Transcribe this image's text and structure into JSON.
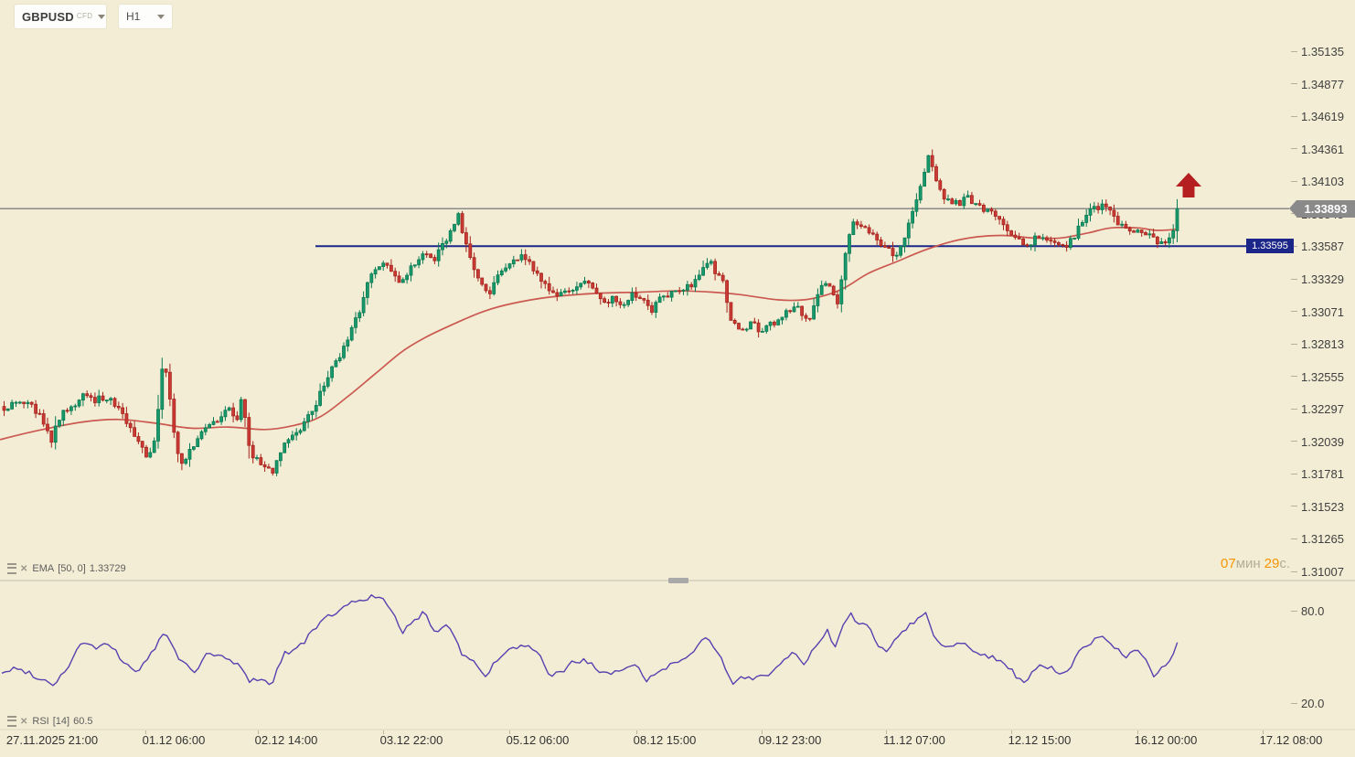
{
  "toolbar": {
    "symbol": "GBPUSD",
    "symbol_type": "CFD",
    "timeframe": "H1"
  },
  "indicator_labels": {
    "ema": {
      "name": "EMA",
      "params": "[50, 0]",
      "value": "1.33729"
    },
    "rsi": {
      "name": "RSI",
      "params": "[14]",
      "value": "60.5"
    }
  },
  "countdown": {
    "minutes": "07",
    "minutes_unit": "мин",
    "seconds": "29",
    "seconds_unit": "с."
  },
  "chart_data": {
    "type": "candlestick",
    "title": "GBPUSD CFD, H1",
    "legend_position": "none",
    "grid": false,
    "price_axis": {
      "min": 1.31007,
      "max": 1.35135,
      "tick_step": 0.00258,
      "ticks": [
        "1.35135",
        "1.34877",
        "1.34619",
        "1.34361",
        "1.34103",
        "1.33845",
        "1.33587",
        "1.33329",
        "1.33071",
        "1.32813",
        "1.32555",
        "1.32297",
        "1.32039",
        "1.31781",
        "1.31523",
        "1.31265",
        "1.31007"
      ]
    },
    "time_axis": {
      "labels": [
        "27.11.2025 21:00",
        "01.12 06:00",
        "02.12 14:00",
        "03.12 22:00",
        "05.12 06:00",
        "08.12 15:00",
        "09.12 23:00",
        "11.12 07:00",
        "12.12 15:00",
        "16.12 00:00",
        "17.12 08:00"
      ]
    },
    "rsi_axis": {
      "ticks": [
        "80.0",
        "20.0"
      ],
      "min": 0,
      "max": 100
    },
    "hlines": [
      {
        "label": "1.33893",
        "price": 1.33893,
        "style": "current-price",
        "color": "#8a8a8a"
      },
      {
        "label": "1.33595",
        "price": 1.33595,
        "style": "level",
        "color": "#1b2688"
      }
    ],
    "annotation": {
      "type": "arrow-up",
      "color": "#b51f1f"
    },
    "price_series": {
      "name": "GBPUSD H1 close (keypoints [x_px, price])",
      "keypoints": [
        [
          2,
          1.3231
        ],
        [
          18,
          1.3236
        ],
        [
          32,
          1.3233
        ],
        [
          45,
          1.3222
        ],
        [
          55,
          1.3204
        ],
        [
          62,
          1.3222
        ],
        [
          70,
          1.323
        ],
        [
          80,
          1.3233
        ],
        [
          90,
          1.3242
        ],
        [
          100,
          1.3236
        ],
        [
          112,
          1.324
        ],
        [
          122,
          1.3235
        ],
        [
          132,
          1.3228
        ],
        [
          142,
          1.3212
        ],
        [
          152,
          1.32
        ],
        [
          160,
          1.3192
        ],
        [
          168,
          1.3205
        ],
        [
          176,
          1.3264
        ],
        [
          182,
          1.3257
        ],
        [
          188,
          1.3212
        ],
        [
          196,
          1.3185
        ],
        [
          205,
          1.3196
        ],
        [
          214,
          1.3205
        ],
        [
          222,
          1.3215
        ],
        [
          232,
          1.3218
        ],
        [
          242,
          1.3228
        ],
        [
          250,
          1.323
        ],
        [
          257,
          1.3218
        ],
        [
          263,
          1.3242
        ],
        [
          272,
          1.3196
        ],
        [
          280,
          1.319
        ],
        [
          290,
          1.3182
        ],
        [
          297,
          1.318
        ],
        [
          305,
          1.3195
        ],
        [
          315,
          1.3208
        ],
        [
          325,
          1.3212
        ],
        [
          333,
          1.3222
        ],
        [
          342,
          1.323
        ],
        [
          352,
          1.3248
        ],
        [
          362,
          1.3262
        ],
        [
          372,
          1.3275
        ],
        [
          382,
          1.3291
        ],
        [
          392,
          1.3308
        ],
        [
          400,
          1.333
        ],
        [
          410,
          1.3342
        ],
        [
          418,
          1.3345
        ],
        [
          428,
          1.3338
        ],
        [
          436,
          1.333
        ],
        [
          445,
          1.3338
        ],
        [
          455,
          1.335
        ],
        [
          465,
          1.3355
        ],
        [
          472,
          1.3345
        ],
        [
          480,
          1.336
        ],
        [
          490,
          1.3368
        ],
        [
          500,
          1.3385
        ],
        [
          508,
          1.336
        ],
        [
          516,
          1.3345
        ],
        [
          524,
          1.3332
        ],
        [
          532,
          1.332
        ],
        [
          540,
          1.3332
        ],
        [
          550,
          1.334
        ],
        [
          560,
          1.3348
        ],
        [
          570,
          1.3352
        ],
        [
          578,
          1.3345
        ],
        [
          588,
          1.3335
        ],
        [
          598,
          1.3328
        ],
        [
          606,
          1.3318
        ],
        [
          615,
          1.3325
        ],
        [
          624,
          1.3322
        ],
        [
          632,
          1.333
        ],
        [
          642,
          1.3333
        ],
        [
          652,
          1.3322
        ],
        [
          662,
          1.3316
        ],
        [
          672,
          1.3318
        ],
        [
          680,
          1.3311
        ],
        [
          690,
          1.3322
        ],
        [
          700,
          1.332
        ],
        [
          710,
          1.3308
        ],
        [
          720,
          1.3318
        ],
        [
          730,
          1.3322
        ],
        [
          740,
          1.3322
        ],
        [
          750,
          1.3328
        ],
        [
          758,
          1.333
        ],
        [
          766,
          1.334
        ],
        [
          774,
          1.3348
        ],
        [
          782,
          1.3338
        ],
        [
          790,
          1.333
        ],
        [
          798,
          1.33
        ],
        [
          806,
          1.3295
        ],
        [
          814,
          1.3294
        ],
        [
          822,
          1.33
        ],
        [
          830,
          1.3292
        ],
        [
          840,
          1.3298
        ],
        [
          850,
          1.33
        ],
        [
          858,
          1.3306
        ],
        [
          868,
          1.3312
        ],
        [
          876,
          1.3306
        ],
        [
          884,
          1.3303
        ],
        [
          892,
          1.332
        ],
        [
          900,
          1.333
        ],
        [
          908,
          1.3326
        ],
        [
          914,
          1.3312
        ],
        [
          922,
          1.335
        ],
        [
          930,
          1.338
        ],
        [
          938,
          1.3377
        ],
        [
          946,
          1.3375
        ],
        [
          954,
          1.3366
        ],
        [
          962,
          1.3358
        ],
        [
          970,
          1.3357
        ],
        [
          978,
          1.335
        ],
        [
          986,
          1.3364
        ],
        [
          994,
          1.338
        ],
        [
          1002,
          1.34
        ],
        [
          1008,
          1.3415
        ],
        [
          1014,
          1.3433
        ],
        [
          1020,
          1.342
        ],
        [
          1026,
          1.3405
        ],
        [
          1032,
          1.3398
        ],
        [
          1040,
          1.3394
        ],
        [
          1048,
          1.3394
        ],
        [
          1056,
          1.3398
        ],
        [
          1064,
          1.3393
        ],
        [
          1072,
          1.339
        ],
        [
          1080,
          1.3388
        ],
        [
          1088,
          1.3382
        ],
        [
          1096,
          1.3376
        ],
        [
          1104,
          1.3371
        ],
        [
          1112,
          1.3366
        ],
        [
          1118,
          1.3358
        ],
        [
          1126,
          1.3362
        ],
        [
          1134,
          1.3368
        ],
        [
          1142,
          1.3365
        ],
        [
          1150,
          1.3362
        ],
        [
          1158,
          1.336
        ],
        [
          1166,
          1.3361
        ],
        [
          1174,
          1.3367
        ],
        [
          1182,
          1.338
        ],
        [
          1190,
          1.3387
        ],
        [
          1198,
          1.339
        ],
        [
          1206,
          1.3394
        ],
        [
          1212,
          1.3387
        ],
        [
          1220,
          1.3378
        ],
        [
          1228,
          1.3373
        ],
        [
          1236,
          1.3372
        ],
        [
          1244,
          1.337
        ],
        [
          1252,
          1.3369
        ],
        [
          1260,
          1.3365
        ],
        [
          1268,
          1.3361
        ],
        [
          1276,
          1.3366
        ],
        [
          1283,
          1.3372
        ],
        [
          1288,
          1.33893
        ]
      ]
    },
    "ema_series": {
      "name": "EMA(50,0)",
      "last_value": 1.33729,
      "keypoints": [
        [
          0,
          1.3206
        ],
        [
          40,
          1.3213
        ],
        [
          90,
          1.322
        ],
        [
          130,
          1.3222
        ],
        [
          170,
          1.3219
        ],
        [
          210,
          1.3215
        ],
        [
          250,
          1.3216
        ],
        [
          290,
          1.3214
        ],
        [
          320,
          1.3217
        ],
        [
          350,
          1.3224
        ],
        [
          380,
          1.324
        ],
        [
          410,
          1.3258
        ],
        [
          440,
          1.3276
        ],
        [
          465,
          1.3287
        ],
        [
          500,
          1.3299
        ],
        [
          530,
          1.3308
        ],
        [
          560,
          1.3314
        ],
        [
          600,
          1.3319
        ],
        [
          650,
          1.3322
        ],
        [
          700,
          1.3323
        ],
        [
          740,
          1.3324
        ],
        [
          780,
          1.3323
        ],
        [
          810,
          1.3321
        ],
        [
          850,
          1.3317
        ],
        [
          880,
          1.3317
        ],
        [
          905,
          1.3321
        ],
        [
          925,
          1.3327
        ],
        [
          950,
          1.3338
        ],
        [
          980,
          1.3347
        ],
        [
          1010,
          1.3356
        ],
        [
          1040,
          1.3363
        ],
        [
          1070,
          1.3367
        ],
        [
          1100,
          1.3368
        ],
        [
          1130,
          1.3366
        ],
        [
          1160,
          1.3366
        ],
        [
          1190,
          1.337
        ],
        [
          1215,
          1.3374
        ],
        [
          1245,
          1.3374
        ],
        [
          1265,
          1.3372
        ],
        [
          1288,
          1.3373
        ]
      ]
    },
    "rsi_series": {
      "name": "RSI(14)",
      "last_value": 60.5,
      "levels": [
        80,
        20
      ],
      "keypoints": [
        [
          2,
          40
        ],
        [
          15,
          43
        ],
        [
          30,
          41
        ],
        [
          45,
          36
        ],
        [
          60,
          33
        ],
        [
          75,
          45
        ],
        [
          90,
          61
        ],
        [
          105,
          56
        ],
        [
          120,
          59
        ],
        [
          135,
          47
        ],
        [
          150,
          41
        ],
        [
          165,
          52
        ],
        [
          180,
          67
        ],
        [
          195,
          50
        ],
        [
          212,
          41
        ],
        [
          228,
          53
        ],
        [
          245,
          50
        ],
        [
          262,
          45
        ],
        [
          272,
          35
        ],
        [
          285,
          37
        ],
        [
          297,
          32
        ],
        [
          310,
          53
        ],
        [
          322,
          55
        ],
        [
          335,
          62
        ],
        [
          350,
          73
        ],
        [
          365,
          79
        ],
        [
          382,
          85
        ],
        [
          395,
          88
        ],
        [
          408,
          90
        ],
        [
          418,
          88
        ],
        [
          430,
          78
        ],
        [
          440,
          67
        ],
        [
          452,
          73
        ],
        [
          465,
          80
        ],
        [
          476,
          66
        ],
        [
          490,
          73
        ],
        [
          505,
          53
        ],
        [
          518,
          47
        ],
        [
          530,
          38
        ],
        [
          545,
          49
        ],
        [
          560,
          56
        ],
        [
          575,
          58
        ],
        [
          590,
          51
        ],
        [
          602,
          38
        ],
        [
          615,
          41
        ],
        [
          626,
          47
        ],
        [
          640,
          49
        ],
        [
          655,
          41
        ],
        [
          668,
          38
        ],
        [
          680,
          43
        ],
        [
          695,
          47
        ],
        [
          706,
          35
        ],
        [
          720,
          41
        ],
        [
          732,
          45
        ],
        [
          745,
          49
        ],
        [
          760,
          56
        ],
        [
          772,
          63
        ],
        [
          786,
          53
        ],
        [
          800,
          33
        ],
        [
          812,
          38
        ],
        [
          825,
          37
        ],
        [
          840,
          39
        ],
        [
          855,
          47
        ],
        [
          868,
          53
        ],
        [
          880,
          45
        ],
        [
          893,
          59
        ],
        [
          905,
          67
        ],
        [
          913,
          56
        ],
        [
          922,
          70
        ],
        [
          930,
          78
        ],
        [
          940,
          73
        ],
        [
          950,
          70
        ],
        [
          960,
          58
        ],
        [
          970,
          55
        ],
        [
          980,
          63
        ],
        [
          992,
          70
        ],
        [
          1005,
          76
        ],
        [
          1013,
          79
        ],
        [
          1022,
          64
        ],
        [
          1032,
          56
        ],
        [
          1042,
          58
        ],
        [
          1052,
          61
        ],
        [
          1062,
          56
        ],
        [
          1072,
          53
        ],
        [
          1082,
          51
        ],
        [
          1092,
          49
        ],
        [
          1102,
          45
        ],
        [
          1112,
          38
        ],
        [
          1120,
          33
        ],
        [
          1130,
          41
        ],
        [
          1140,
          45
        ],
        [
          1152,
          43
        ],
        [
          1162,
          39
        ],
        [
          1172,
          45
        ],
        [
          1182,
          55
        ],
        [
          1192,
          60
        ],
        [
          1202,
          64
        ],
        [
          1212,
          61
        ],
        [
          1222,
          55
        ],
        [
          1232,
          51
        ],
        [
          1242,
          55
        ],
        [
          1252,
          49
        ],
        [
          1262,
          38
        ],
        [
          1272,
          44
        ],
        [
          1280,
          47
        ],
        [
          1288,
          60.5
        ]
      ]
    }
  },
  "colors": {
    "background": "#f2edd4",
    "bull_fill": "#17996b",
    "bull_stroke": "#0b7a53",
    "bear_fill": "#cb3b35",
    "bear_stroke": "#a7231d",
    "ema_line": "#c9514a",
    "rsi_line": "#5741b0",
    "current_tag_bg": "#8a8a8a",
    "level_tag_bg": "#1b2688",
    "arrow": "#b51f1f",
    "countdown_accent": "#f99500",
    "countdown_muted": "#b5ad95",
    "axis_text": "#3f3f3f",
    "separator": "#c4bfae"
  }
}
